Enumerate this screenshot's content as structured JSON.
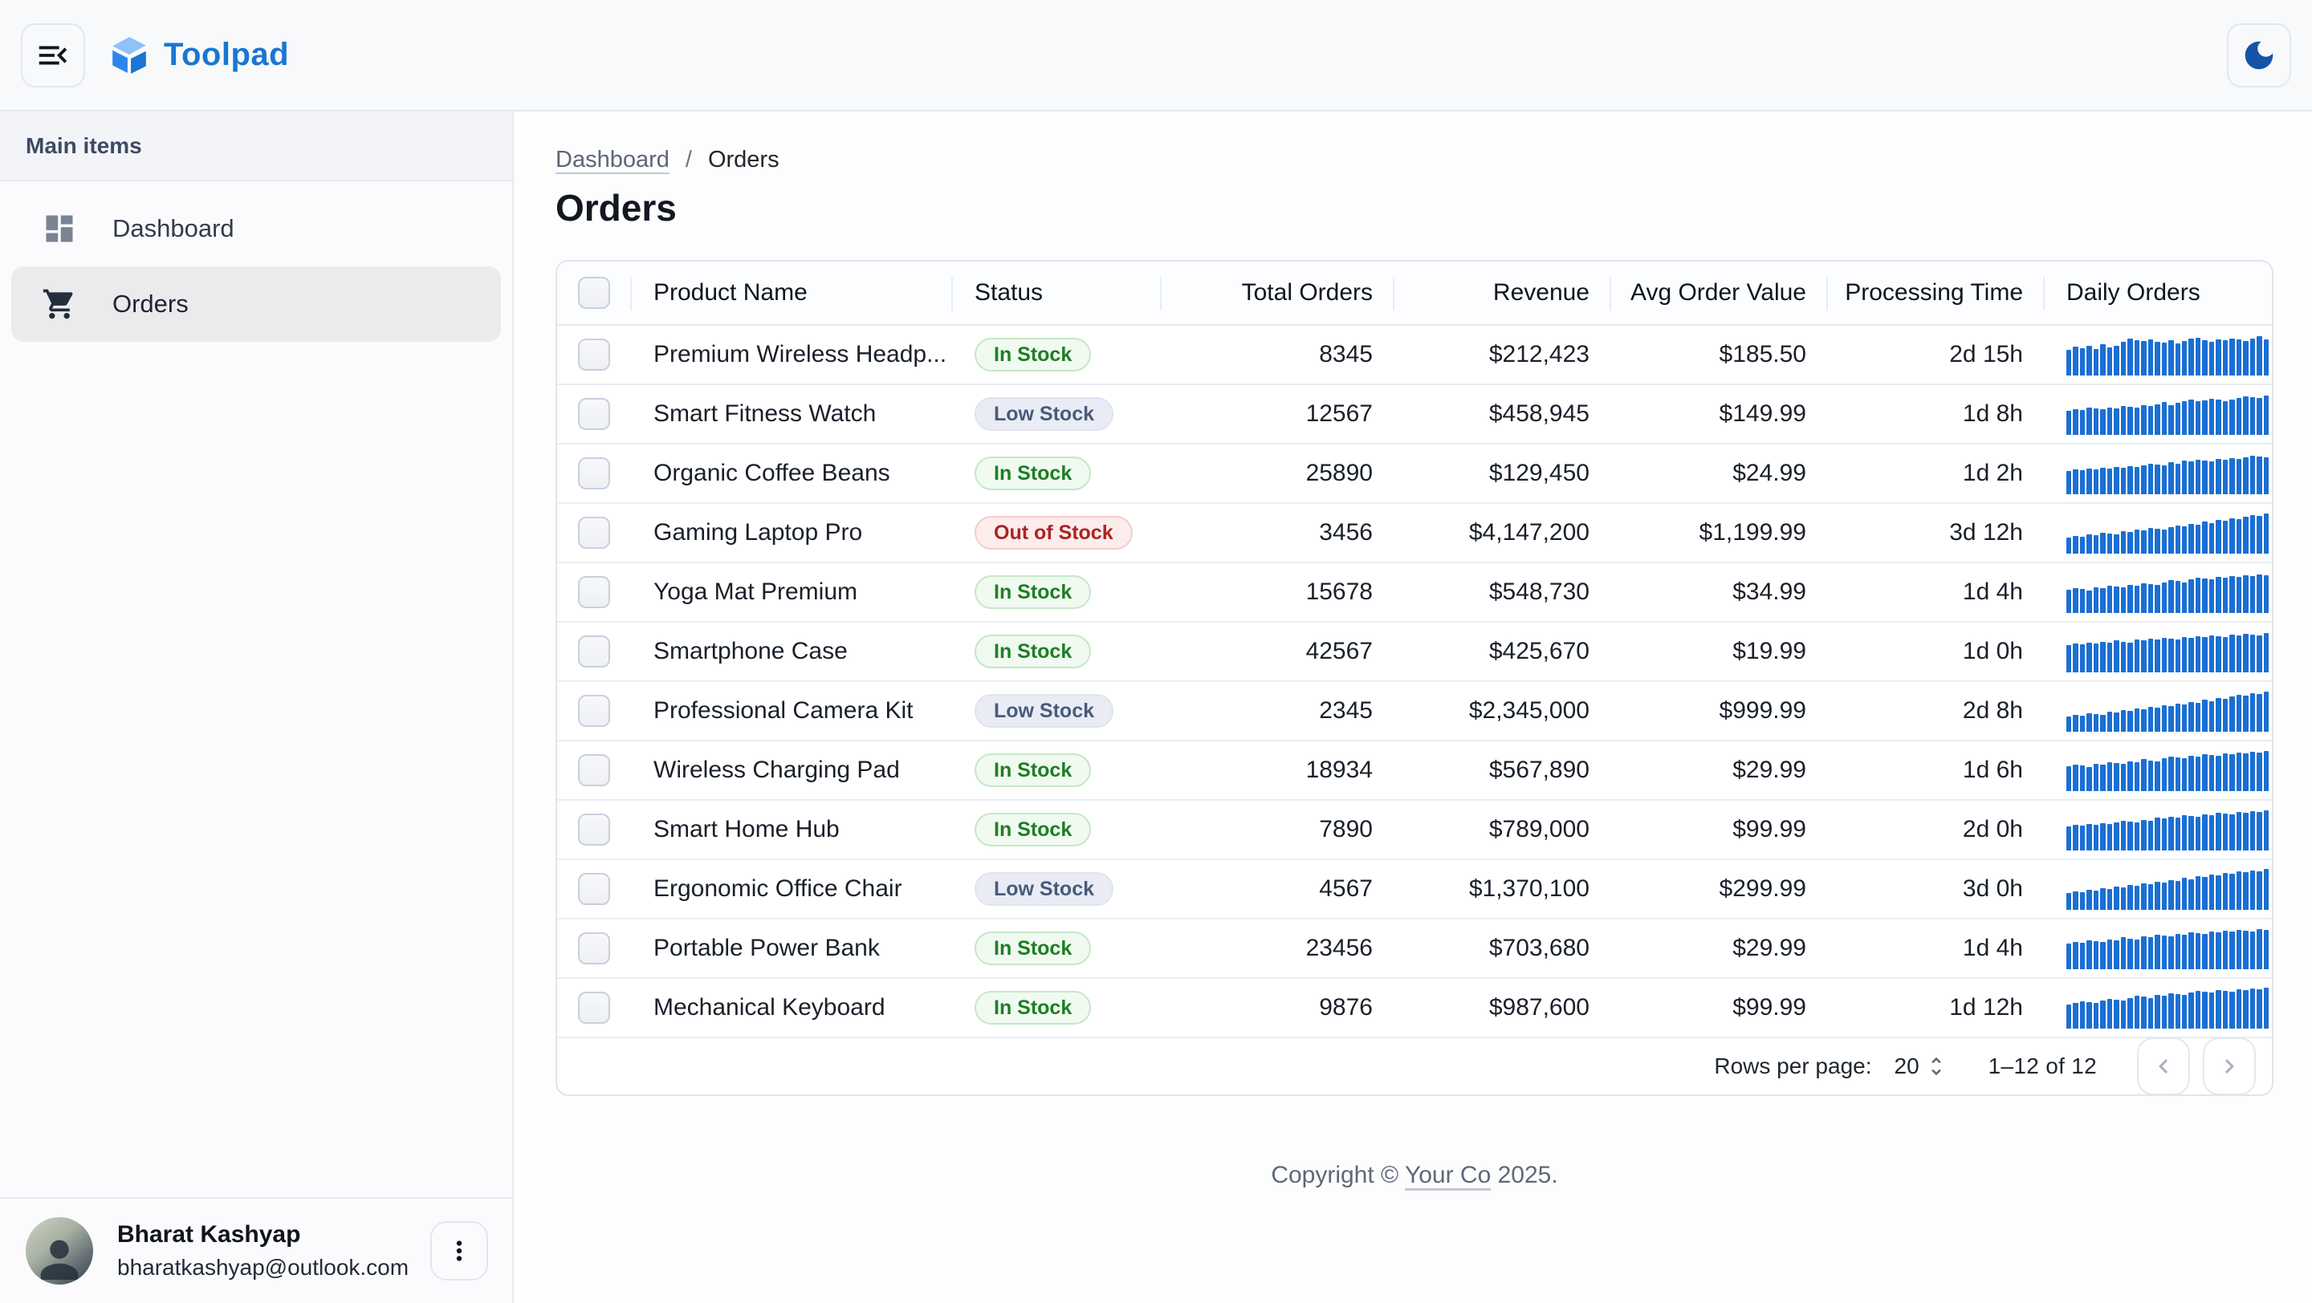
{
  "app": {
    "title": "Toolpad"
  },
  "sidebar": {
    "section_label": "Main items",
    "items": [
      {
        "label": "Dashboard",
        "icon": "dashboard-icon",
        "selected": false
      },
      {
        "label": "Orders",
        "icon": "shopping-cart-icon",
        "selected": true
      }
    ]
  },
  "breadcrumb": {
    "parent": "Dashboard",
    "separator": "/",
    "current": "Orders"
  },
  "page": {
    "title": "Orders"
  },
  "table": {
    "columns": [
      "Product Name",
      "Status",
      "Total Orders",
      "Revenue",
      "Avg Order Value",
      "Processing Time",
      "Daily Orders"
    ],
    "rows": [
      {
        "product": "Premium Wireless Headp...",
        "status": "In Stock",
        "status_variant": "success",
        "total_orders": "8345",
        "revenue": "$212,423",
        "avg_order_value": "$185.50",
        "processing_time": "2d 15h",
        "daily_orders": [
          62,
          70,
          66,
          72,
          64,
          75,
          68,
          72,
          80,
          88,
          84,
          82,
          86,
          80,
          78,
          84,
          76,
          82,
          88,
          90,
          84,
          80,
          86,
          84,
          88,
          86,
          82,
          88,
          94,
          86
        ]
      },
      {
        "product": "Smart Fitness Watch",
        "status": "Low Stock",
        "status_variant": "default",
        "total_orders": "12567",
        "revenue": "$458,945",
        "avg_order_value": "$149.99",
        "processing_time": "1d 8h",
        "daily_orders": [
          58,
          62,
          60,
          66,
          63,
          61,
          66,
          64,
          70,
          68,
          66,
          72,
          70,
          74,
          78,
          72,
          76,
          80,
          84,
          80,
          82,
          86,
          84,
          80,
          84,
          88,
          92,
          90,
          88,
          94
        ]
      },
      {
        "product": "Organic Coffee Beans",
        "status": "In Stock",
        "status_variant": "success",
        "total_orders": "25890",
        "revenue": "$129,450",
        "avg_order_value": "$24.99",
        "processing_time": "1d 2h",
        "daily_orders": [
          55,
          60,
          57,
          62,
          60,
          64,
          62,
          66,
          64,
          68,
          66,
          70,
          74,
          72,
          70,
          76,
          74,
          80,
          78,
          82,
          80,
          78,
          84,
          82,
          86,
          84,
          88,
          92,
          90,
          88
        ]
      },
      {
        "product": "Gaming Laptop Pro",
        "status": "Out of Stock",
        "status_variant": "error",
        "total_orders": "3456",
        "revenue": "$4,147,200",
        "avg_order_value": "$1,199.99",
        "processing_time": "3d 12h",
        "daily_orders": [
          38,
          42,
          40,
          46,
          44,
          50,
          48,
          46,
          54,
          52,
          58,
          56,
          62,
          60,
          58,
          64,
          68,
          66,
          72,
          70,
          76,
          74,
          80,
          78,
          84,
          82,
          88,
          92,
          90,
          96
        ]
      },
      {
        "product": "Yoga Mat Premium",
        "status": "In Stock",
        "status_variant": "success",
        "total_orders": "15678",
        "revenue": "$548,730",
        "avg_order_value": "$34.99",
        "processing_time": "1d 4h",
        "daily_orders": [
          56,
          60,
          58,
          54,
          62,
          60,
          66,
          64,
          62,
          68,
          66,
          72,
          70,
          68,
          74,
          78,
          76,
          74,
          80,
          84,
          82,
          80,
          86,
          84,
          88,
          86,
          90,
          88,
          92,
          90
        ]
      },
      {
        "product": "Smartphone Case",
        "status": "In Stock",
        "status_variant": "success",
        "total_orders": "42567",
        "revenue": "$425,670",
        "avg_order_value": "$19.99",
        "processing_time": "1d 0h",
        "daily_orders": [
          66,
          70,
          68,
          72,
          70,
          74,
          72,
          76,
          74,
          72,
          78,
          76,
          80,
          78,
          82,
          80,
          78,
          84,
          82,
          86,
          84,
          88,
          86,
          84,
          90,
          88,
          92,
          90,
          88,
          94
        ]
      },
      {
        "product": "Professional Camera Kit",
        "status": "Low Stock",
        "status_variant": "default",
        "total_orders": "2345",
        "revenue": "$2,345,000",
        "avg_order_value": "$999.99",
        "processing_time": "2d 8h",
        "daily_orders": [
          36,
          40,
          38,
          44,
          42,
          40,
          48,
          46,
          52,
          50,
          56,
          54,
          60,
          58,
          64,
          62,
          68,
          66,
          72,
          70,
          76,
          74,
          80,
          78,
          84,
          88,
          86,
          92,
          90,
          96
        ]
      },
      {
        "product": "Wireless Charging Pad",
        "status": "In Stock",
        "status_variant": "success",
        "total_orders": "18934",
        "revenue": "$567,890",
        "avg_order_value": "$29.99",
        "processing_time": "1d 6h",
        "daily_orders": [
          60,
          64,
          62,
          58,
          66,
          64,
          70,
          68,
          66,
          72,
          70,
          76,
          74,
          72,
          78,
          82,
          80,
          78,
          84,
          82,
          88,
          86,
          84,
          90,
          88,
          92,
          90,
          94,
          92,
          96
        ]
      },
      {
        "product": "Smart Home Hub",
        "status": "In Stock",
        "status_variant": "success",
        "total_orders": "7890",
        "revenue": "$789,000",
        "avg_order_value": "$99.99",
        "processing_time": "2d 0h",
        "daily_orders": [
          58,
          62,
          60,
          64,
          62,
          66,
          64,
          68,
          72,
          70,
          68,
          74,
          72,
          78,
          76,
          80,
          78,
          84,
          82,
          80,
          86,
          84,
          90,
          88,
          86,
          92,
          90,
          94,
          92,
          96
        ]
      },
      {
        "product": "Ergonomic Office Chair",
        "status": "Low Stock",
        "status_variant": "default",
        "total_orders": "4567",
        "revenue": "$1,370,100",
        "avg_order_value": "$299.99",
        "processing_time": "3d 0h",
        "daily_orders": [
          40,
          44,
          42,
          48,
          46,
          52,
          50,
          56,
          54,
          60,
          58,
          64,
          62,
          68,
          66,
          72,
          70,
          76,
          74,
          80,
          78,
          84,
          82,
          88,
          86,
          92,
          90,
          94,
          92,
          98
        ]
      },
      {
        "product": "Portable Power Bank",
        "status": "In Stock",
        "status_variant": "success",
        "total_orders": "23456",
        "revenue": "$703,680",
        "avg_order_value": "$29.99",
        "processing_time": "1d 4h",
        "daily_orders": [
          62,
          66,
          64,
          70,
          68,
          66,
          72,
          70,
          76,
          74,
          72,
          78,
          76,
          82,
          80,
          78,
          84,
          82,
          88,
          86,
          84,
          90,
          88,
          92,
          90,
          94,
          92,
          90,
          96,
          94
        ]
      },
      {
        "product": "Mechanical Keyboard",
        "status": "In Stock",
        "status_variant": "success",
        "total_orders": "9876",
        "revenue": "$987,600",
        "avg_order_value": "$99.99",
        "processing_time": "1d 12h",
        "daily_orders": [
          58,
          62,
          66,
          64,
          62,
          68,
          72,
          70,
          68,
          74,
          78,
          76,
          74,
          80,
          78,
          84,
          82,
          80,
          86,
          90,
          88,
          86,
          92,
          90,
          88,
          94,
          92,
          96,
          94,
          98
        ]
      }
    ]
  },
  "pagination": {
    "rows_per_page_label": "Rows per page:",
    "rows_per_page": "20",
    "range": "1–12 of 12"
  },
  "footer": {
    "prefix": "Copyright © ",
    "link": "Your Co",
    "suffix": " 2025."
  },
  "account": {
    "name": "Bharat Kashyap",
    "email": "bharatkashyap@outlook.com"
  },
  "colors": {
    "accent": "#1976d2",
    "sparkline": "#1b6fd3",
    "chip_success_text": "#1e7e25",
    "chip_default_text": "#4a5b7b",
    "chip_error_text": "#ab2424"
  }
}
